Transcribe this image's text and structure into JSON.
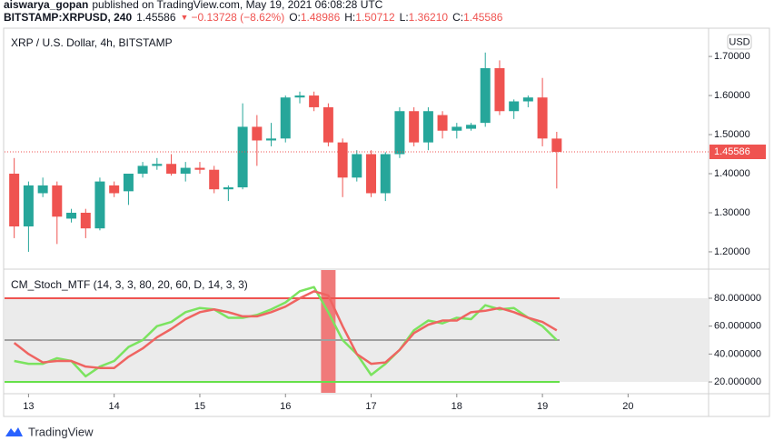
{
  "header": {
    "author": "aiswarya_gopan",
    "published": "published on TradingView.com, May 19, 2021 06:08:28 UTC",
    "symbol": "BITSTAMP:XRPUSD, 240",
    "price": "1.45586",
    "arrow": "▼",
    "change": "−0.13728 (−8.62%)",
    "o_label": "O:",
    "o": "1.48986",
    "h_label": "H:",
    "h": "1.50712",
    "l_label": "L:",
    "l": "1.36210",
    "c_label": "C:",
    "c": "1.45586"
  },
  "currency": "USD",
  "footer": "TradingView",
  "chart_data": [
    {
      "type": "candlestick",
      "title": "XRP / U.S. Dollar, 4h, BITSTAMP",
      "x": [
        12.833,
        13,
        13.167,
        13.333,
        13.5,
        13.667,
        13.833,
        14,
        14.167,
        14.333,
        14.5,
        14.667,
        14.833,
        15,
        15.167,
        15.333,
        15.5,
        15.667,
        15.833,
        16,
        16.167,
        16.333,
        16.5,
        16.667,
        16.833,
        17,
        17.167,
        17.333,
        17.5,
        17.667,
        17.833,
        18,
        18.167,
        18.333,
        18.5,
        18.667,
        18.833,
        19,
        19.167
      ],
      "open": [
        1.4,
        1.265,
        1.35,
        1.37,
        1.285,
        1.3,
        1.26,
        1.37,
        1.355,
        1.4,
        1.42,
        1.425,
        1.4,
        1.415,
        1.41,
        1.36,
        1.365,
        1.52,
        1.485,
        1.49,
        1.595,
        1.6,
        1.57,
        1.48,
        1.39,
        1.45,
        1.35,
        1.45,
        1.56,
        1.48,
        1.55,
        1.51,
        1.515,
        1.53,
        1.67,
        1.56,
        1.585,
        1.595,
        1.48986
      ],
      "high": [
        1.44,
        1.38,
        1.39,
        1.38,
        1.31,
        1.31,
        1.39,
        1.38,
        1.4,
        1.43,
        1.44,
        1.45,
        1.43,
        1.43,
        1.42,
        1.37,
        1.58,
        1.55,
        1.53,
        1.6,
        1.61,
        1.61,
        1.58,
        1.49,
        1.46,
        1.46,
        1.455,
        1.57,
        1.57,
        1.57,
        1.56,
        1.53,
        1.53,
        1.71,
        1.69,
        1.59,
        1.6,
        1.645,
        1.50712
      ],
      "low": [
        1.235,
        1.2,
        1.34,
        1.22,
        1.275,
        1.235,
        1.255,
        1.34,
        1.32,
        1.39,
        1.41,
        1.395,
        1.38,
        1.4,
        1.35,
        1.33,
        1.36,
        1.42,
        1.47,
        1.48,
        1.58,
        1.56,
        1.47,
        1.34,
        1.38,
        1.34,
        1.33,
        1.44,
        1.47,
        1.46,
        1.49,
        1.49,
        1.51,
        1.52,
        1.55,
        1.54,
        1.57,
        1.47,
        1.3621
      ],
      "close": [
        1.265,
        1.37,
        1.37,
        1.29,
        1.3,
        1.26,
        1.38,
        1.35,
        1.4,
        1.42,
        1.425,
        1.4,
        1.415,
        1.41,
        1.36,
        1.365,
        1.52,
        1.485,
        1.49,
        1.595,
        1.6,
        1.57,
        1.48,
        1.39,
        1.45,
        1.35,
        1.45,
        1.56,
        1.48,
        1.56,
        1.51,
        1.52,
        1.525,
        1.67,
        1.56,
        1.585,
        1.595,
        1.49,
        1.45586
      ],
      "up_color": "#26a69a",
      "down_color": "#ef5350",
      "xlim": [
        12.72,
        20.94
      ],
      "ylim": [
        1.158,
        1.77
      ],
      "yticks": [
        {
          "value": 1.2,
          "label": "1.20000"
        },
        {
          "value": 1.3,
          "label": "1.30000"
        },
        {
          "value": 1.4,
          "label": "1.40000"
        },
        {
          "value": 1.5,
          "label": "1.50000"
        },
        {
          "value": 1.6,
          "label": "1.60000"
        },
        {
          "value": 1.7,
          "label": "1.70000"
        }
      ],
      "last_price": 1.45586
    },
    {
      "type": "line",
      "title": "CM_Stoch_MTF (14, 3, 3, 80, 20, 60, D, 14, 3, 3)",
      "x": [
        12.833,
        13,
        13.167,
        13.333,
        13.5,
        13.667,
        13.833,
        14,
        14.167,
        14.333,
        14.5,
        14.667,
        14.833,
        15,
        15.167,
        15.333,
        15.5,
        15.667,
        15.833,
        16,
        16.167,
        16.333,
        16.5,
        16.667,
        16.833,
        17,
        17.167,
        17.333,
        17.5,
        17.667,
        17.833,
        18,
        18.167,
        18.333,
        18.5,
        18.667,
        18.833,
        19,
        19.167
      ],
      "series": [
        {
          "color": "#7be35f",
          "values": [
            35,
            33,
            33,
            37,
            35,
            24,
            31,
            35,
            45,
            50,
            60,
            63,
            70,
            73,
            72,
            66,
            66,
            68,
            72,
            77,
            85,
            88,
            70,
            50,
            40,
            25,
            33,
            43,
            57,
            64,
            62,
            66,
            65,
            75,
            72,
            73,
            66,
            60,
            50
          ]
        },
        {
          "color": "#ef6461",
          "values": [
            48,
            40,
            34,
            35,
            35,
            31,
            30,
            30,
            38,
            44,
            52,
            58,
            65,
            70,
            72,
            70,
            67,
            67,
            70,
            74,
            80,
            85,
            82,
            60,
            40,
            33,
            34,
            43,
            55,
            61,
            64,
            64,
            70,
            71,
            73,
            70,
            66,
            63,
            57
          ]
        }
      ],
      "levels": [
        {
          "value": 80,
          "color": "#ef5350"
        },
        {
          "value": 50,
          "color": "#a0a0a0"
        },
        {
          "value": 20,
          "color": "#66e04a"
        }
      ],
      "band_color": "#ebebeb",
      "highlight_x": 16.5,
      "highlight_color": "#f07a7a",
      "xlim": [
        12.72,
        20.94
      ],
      "ylim": [
        12.2,
        100.2
      ],
      "xticks": [
        13,
        14,
        15,
        16,
        17,
        18,
        19,
        20
      ],
      "yticks": [
        {
          "value": 20,
          "label": "20.000000"
        },
        {
          "value": 40,
          "label": "40.000000"
        },
        {
          "value": 60,
          "label": "60.000000"
        },
        {
          "value": 80,
          "label": "80.000000"
        }
      ]
    }
  ]
}
